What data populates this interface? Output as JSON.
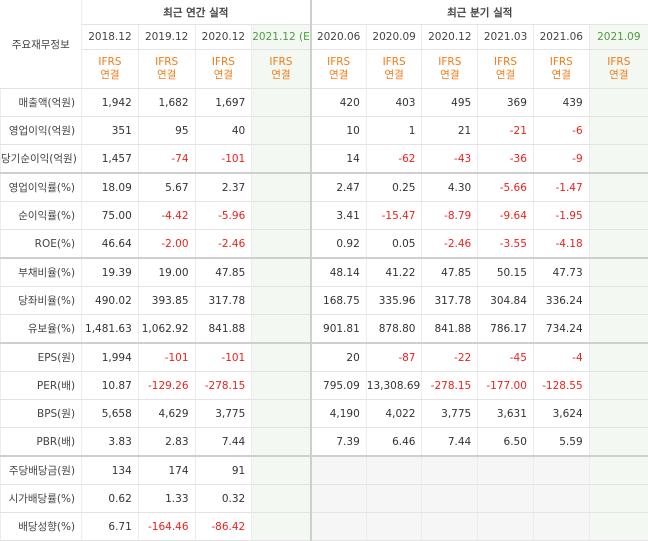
{
  "header": {
    "label_title": "주요재무정보",
    "annual_title": "최근 연간 실적",
    "quarter_title": "최근 분기 실적",
    "annual_periods": [
      "2018.12",
      "2019.12",
      "2020.12",
      "2021.12"
    ],
    "quarter_periods": [
      "2020.06",
      "2020.09",
      "2020.12",
      "2021.03",
      "2021.06",
      "2021.09"
    ],
    "estimate_marker": "(E)",
    "basis_line1": "IFRS",
    "basis_line2": "연결"
  },
  "rows": [
    {
      "label": "매출액(억원)",
      "annual": [
        "1,942",
        "1,682",
        "1,697",
        ""
      ],
      "quarter": [
        "420",
        "403",
        "495",
        "369",
        "439",
        ""
      ]
    },
    {
      "label": "영업이익(억원)",
      "annual": [
        "351",
        "95",
        "40",
        ""
      ],
      "quarter": [
        "10",
        "1",
        "21",
        "-21",
        "-6",
        ""
      ]
    },
    {
      "label": "당기순이익(억원)",
      "annual": [
        "1,457",
        "-74",
        "-101",
        ""
      ],
      "quarter": [
        "14",
        "-62",
        "-43",
        "-36",
        "-9",
        ""
      ]
    },
    {
      "label": "영업이익률(%)",
      "annual": [
        "18.09",
        "5.67",
        "2.37",
        ""
      ],
      "quarter": [
        "2.47",
        "0.25",
        "4.30",
        "-5.66",
        "-1.47",
        ""
      ]
    },
    {
      "label": "순이익률(%)",
      "annual": [
        "75.00",
        "-4.42",
        "-5.96",
        ""
      ],
      "quarter": [
        "3.41",
        "-15.47",
        "-8.79",
        "-9.64",
        "-1.95",
        ""
      ]
    },
    {
      "label": "ROE(%)",
      "annual": [
        "46.64",
        "-2.00",
        "-2.46",
        ""
      ],
      "quarter": [
        "0.92",
        "0.05",
        "-2.46",
        "-3.55",
        "-4.18",
        ""
      ]
    },
    {
      "label": "부채비율(%)",
      "annual": [
        "19.39",
        "19.00",
        "47.85",
        ""
      ],
      "quarter": [
        "48.14",
        "41.22",
        "47.85",
        "50.15",
        "47.73",
        ""
      ]
    },
    {
      "label": "당좌비율(%)",
      "annual": [
        "490.02",
        "393.85",
        "317.78",
        ""
      ],
      "quarter": [
        "168.75",
        "335.96",
        "317.78",
        "304.84",
        "336.24",
        ""
      ]
    },
    {
      "label": "유보율(%)",
      "annual": [
        "1,481.63",
        "1,062.92",
        "841.88",
        ""
      ],
      "quarter": [
        "901.81",
        "878.80",
        "841.88",
        "786.17",
        "734.24",
        ""
      ]
    },
    {
      "label": "EPS(원)",
      "annual": [
        "1,994",
        "-101",
        "-101",
        ""
      ],
      "quarter": [
        "20",
        "-87",
        "-22",
        "-45",
        "-4",
        ""
      ]
    },
    {
      "label": "PER(배)",
      "annual": [
        "10.87",
        "-129.26",
        "-278.15",
        ""
      ],
      "quarter": [
        "795.09",
        "13,308.69",
        "-278.15",
        "-177.00",
        "-128.55",
        ""
      ]
    },
    {
      "label": "BPS(원)",
      "annual": [
        "5,658",
        "4,629",
        "3,775",
        ""
      ],
      "quarter": [
        "4,190",
        "4,022",
        "3,775",
        "3,631",
        "3,624",
        ""
      ]
    },
    {
      "label": "PBR(배)",
      "annual": [
        "3.83",
        "2.83",
        "7.44",
        ""
      ],
      "quarter": [
        "7.39",
        "6.46",
        "7.44",
        "6.50",
        "5.59",
        ""
      ]
    },
    {
      "label": "주당배당금(원)",
      "annual": [
        "134",
        "174",
        "91",
        ""
      ],
      "quarter": [
        "",
        "",
        "",
        "",
        "",
        ""
      ]
    },
    {
      "label": "시가배당률(%)",
      "annual": [
        "0.62",
        "1.33",
        "0.32",
        ""
      ],
      "quarter": [
        "",
        "",
        "",
        "",
        "",
        ""
      ]
    },
    {
      "label": "배당성향(%)",
      "annual": [
        "6.71",
        "-164.46",
        "-86.42",
        ""
      ],
      "quarter": [
        "",
        "",
        "",
        "",
        "",
        ""
      ]
    }
  ],
  "colors": {
    "negative": "#e8231c",
    "basis": "#f07b17",
    "estimate": "#4e9a3f"
  }
}
